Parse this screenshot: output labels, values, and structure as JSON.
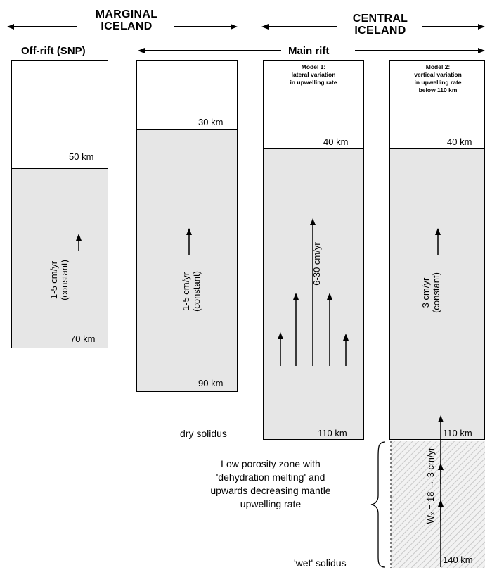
{
  "regions": {
    "marginal": {
      "line1": "MARGINAL",
      "line2": "ICELAND"
    },
    "central": {
      "line1": "CENTRAL",
      "line2": "ICELAND"
    }
  },
  "subtitles": {
    "off_rift": "Off-rift (SNP)",
    "main_rift": "Main rift"
  },
  "columns": {
    "off_rift": {
      "top_depth": "50 km",
      "bottom_depth": "70 km",
      "rate_line1": "1-5 cm/yr",
      "rate_line2": "(constant)"
    },
    "main_rift_shallow": {
      "top_depth": "30 km",
      "bottom_depth": "90 km",
      "rate_line1": "1-5 cm/yr",
      "rate_line2": "(constant)"
    },
    "model1": {
      "title": "Model 1:",
      "caption_line1": "lateral variation",
      "caption_line2": "in upwelling rate",
      "top_depth": "40 km",
      "bottom_depth": "110 km",
      "rate": "6-30 cm/yr"
    },
    "model2": {
      "title": "Model 2:",
      "caption_line1": "vertical variation",
      "caption_line2": "in upwelling rate",
      "caption_line3": "below 110 km",
      "top_depth": "40 km",
      "bottom_depth": "110 km",
      "rate_line1": "3 cm/yr",
      "rate_line2": "(constant)",
      "lower_bottom_depth": "140 km",
      "lower_rate": "Wₓ = 18 → 3 cm/yr"
    }
  },
  "labels": {
    "dry_solidus": "dry solidus",
    "wet_solidus": "'wet' solidus",
    "low_porosity_1": "Low porosity zone with",
    "low_porosity_2": "'dehydration melting' and",
    "low_porosity_3": "upwards decreasing mantle",
    "low_porosity_4": "upwelling rate"
  },
  "colors": {
    "melt_zone_fill": "#e6e6e6",
    "hatch_line": "#c8c8c8",
    "outline": "#000000"
  }
}
